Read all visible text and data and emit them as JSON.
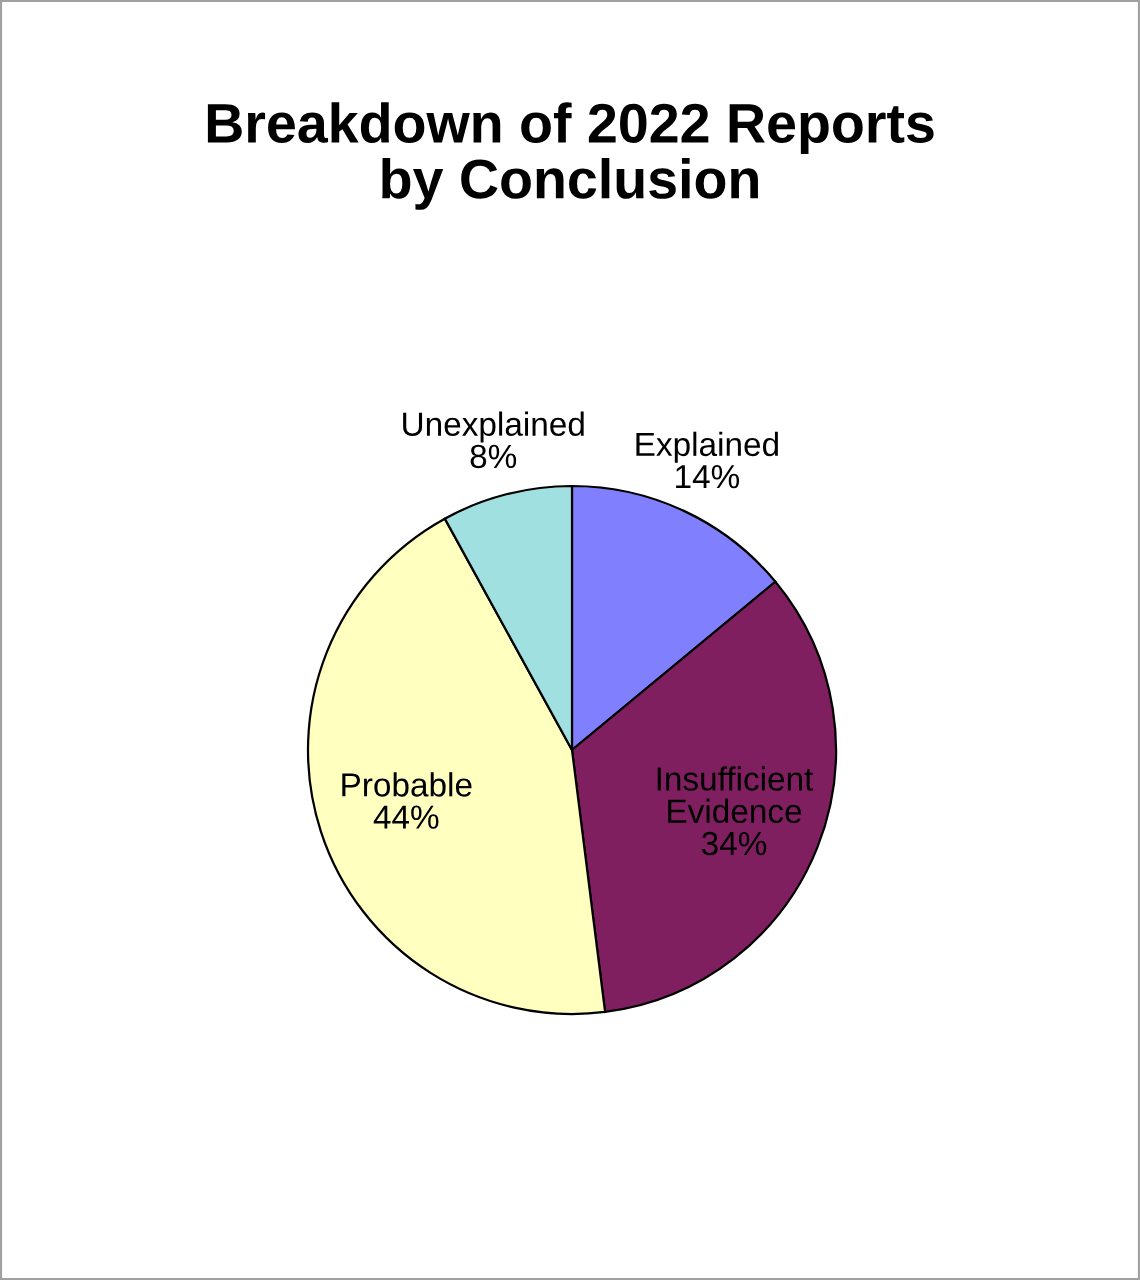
{
  "chart_data": {
    "type": "pie",
    "title": "Breakdown of 2022 Reports\nby Conclusion",
    "categories": [
      "Explained",
      "Insufficient Evidence",
      "Probable",
      "Unexplained"
    ],
    "values": [
      14,
      34,
      44,
      8
    ],
    "value_labels": [
      "14%",
      "34%",
      "44%",
      "8%"
    ],
    "colors": [
      "#8080ff",
      "#801f60",
      "#ffffc0",
      "#a0e0e0"
    ],
    "legend": false
  }
}
